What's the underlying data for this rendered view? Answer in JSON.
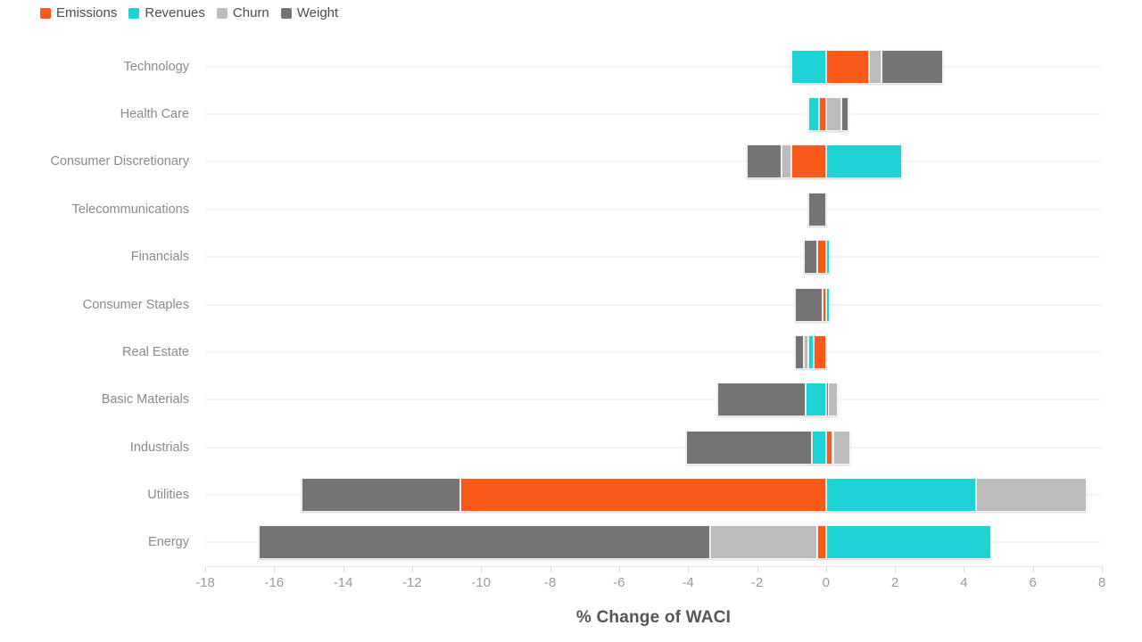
{
  "chart_data": {
    "type": "bar",
    "orientation": "horizontal",
    "stacked": true,
    "title": "",
    "xlabel": "% Change of WACI",
    "ylabel": "",
    "categories": [
      "Technology",
      "Health Care",
      "Consumer Discretionary",
      "Telecommunications",
      "Financials",
      "Consumer Staples",
      "Real Estate",
      "Basic Materials",
      "Industrials",
      "Utilities",
      "Energy"
    ],
    "series": [
      {
        "name": "Emissions",
        "color": "#fa5a19",
        "values": [
          1.25,
          -0.2,
          -1.0,
          0,
          -0.25,
          -0.1,
          -0.35,
          0.05,
          0.2,
          -10.6,
          -0.25
        ]
      },
      {
        "name": "Revenues",
        "color": "#1dd3d5",
        "values": [
          -1.0,
          -0.3,
          2.2,
          0,
          0.1,
          0.1,
          -0.15,
          -0.6,
          -0.4,
          4.35,
          4.8
        ]
      },
      {
        "name": "Churn",
        "color": "#bcbcbc",
        "values": [
          0.35,
          0.45,
          -0.3,
          0,
          0,
          0,
          -0.15,
          0.3,
          0.5,
          3.2,
          -3.1
        ]
      },
      {
        "name": "Weight",
        "color": "#747474",
        "values": [
          1.8,
          0.2,
          -1.0,
          -0.5,
          -0.4,
          -0.8,
          -0.25,
          -2.55,
          -3.65,
          -4.6,
          -13.1
        ]
      }
    ],
    "xlim": [
      -18,
      8
    ],
    "xticks": [
      -18,
      -16,
      -14,
      -12,
      -10,
      -8,
      -6,
      -4,
      -2,
      0,
      2,
      4,
      6,
      8
    ],
    "grid": "horizontal",
    "legend_position": "top-left"
  },
  "styles": {
    "background": "#ffffff",
    "grid_color": "#f3f3f3",
    "axis_line_color": "#e7e7e7",
    "tick_mark_color": "#d9d9d9",
    "tick_label_color": "#9a9a9a",
    "category_label_color": "#8a8a8a",
    "legend_label_color": "#4c4c4c",
    "title_color": "#555555"
  }
}
